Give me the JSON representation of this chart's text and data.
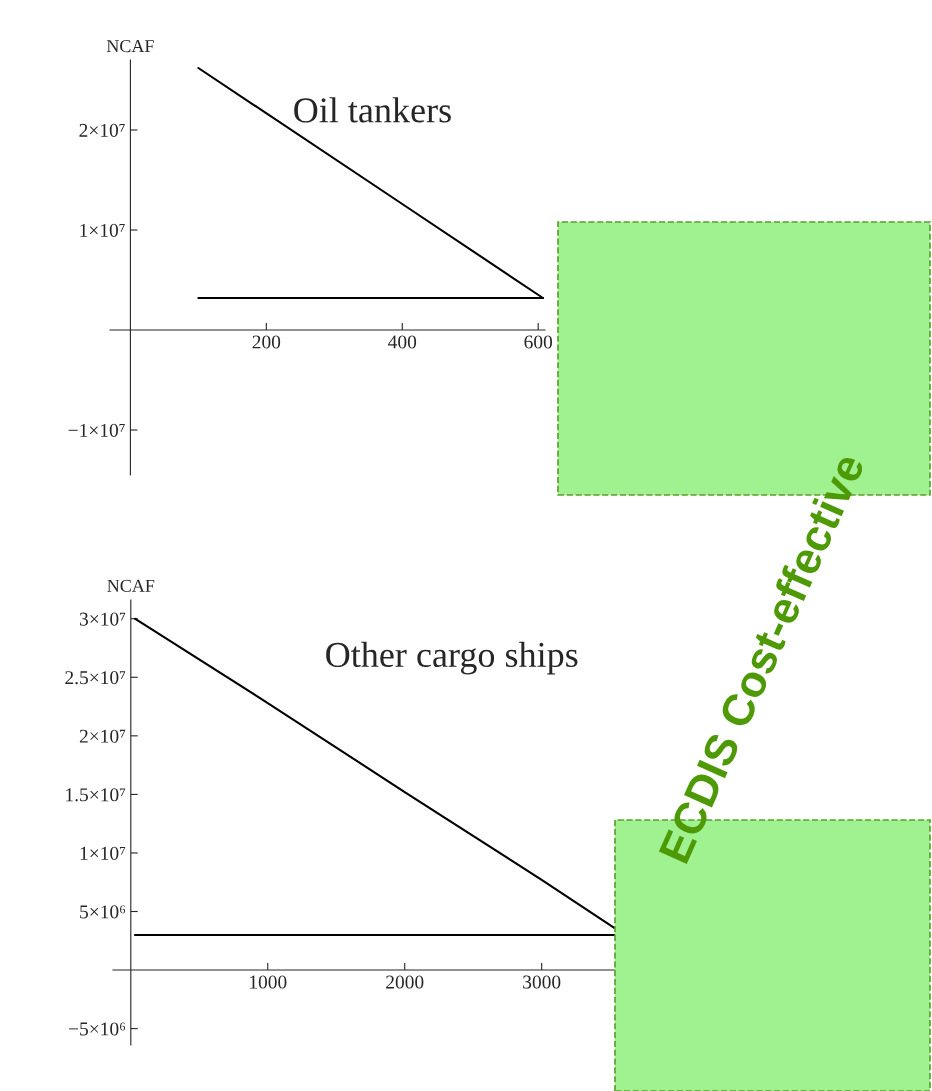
{
  "chart_data": [
    {
      "type": "line",
      "title": "Oil tankers",
      "ylabel": "NCAF",
      "grid": false,
      "series": [
        {
          "color": "#000000",
          "x": [
            100,
            400,
            607
          ],
          "values": [
            26200000,
            12600000,
            3200000
          ]
        },
        {
          "color": "#000000",
          "x": [
            100,
            607
          ],
          "values": [
            3200000,
            3200000
          ]
        }
      ],
      "xlim": [
        -30,
        610
      ],
      "xticks": [
        200,
        400,
        600
      ],
      "ylim": [
        -14500000,
        27000000
      ],
      "yticks": [
        {
          "value": -10000000,
          "label": "−1×10⁷"
        },
        {
          "value": 10000000,
          "label": "1×10⁷"
        },
        {
          "value": 20000000,
          "label": "2×10⁷"
        }
      ]
    },
    {
      "type": "line",
      "title": "Other cargo ships",
      "ylabel": "NCAF",
      "grid": false,
      "series": [
        {
          "color": "#000000",
          "x": [
            30,
            1000,
            2000,
            3000,
            3530
          ],
          "values": [
            30000000,
            22800000,
            15200000,
            7700000,
            3600000
          ]
        },
        {
          "color": "#000000",
          "x": [
            30,
            3530
          ],
          "values": [
            3000000,
            3000000
          ]
        }
      ],
      "xlim": [
        -130,
        3550
      ],
      "xticks": [
        1000,
        2000,
        3000
      ],
      "ylim": [
        -6400000,
        31600000
      ],
      "yticks": [
        {
          "value": -5000000,
          "label": "−5×10⁶"
        },
        {
          "value": 5000000,
          "label": "5×10⁶"
        },
        {
          "value": 10000000,
          "label": "1×10⁷"
        },
        {
          "value": 15000000,
          "label": "1.5×10⁷"
        },
        {
          "value": 20000000,
          "label": "2×10⁷"
        },
        {
          "value": 25000000,
          "label": "2.5×10⁷"
        },
        {
          "value": 30000000,
          "label": "3×10⁷"
        }
      ],
      "annotations": [
        "ECDIS Cost-effective"
      ]
    }
  ]
}
